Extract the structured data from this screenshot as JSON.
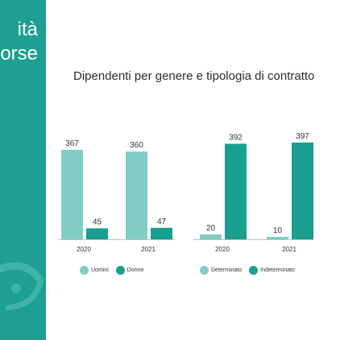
{
  "sidebar": {
    "title_line1": "ità",
    "title_line2": "orse"
  },
  "header": {
    "title": "Dipendenti per genere e tipologia di contratto"
  },
  "colors": {
    "light_teal": "#7fcdc4",
    "dark_teal": "#1a9e8f",
    "panel": "#1f9e94"
  },
  "legends": [
    {
      "items": [
        "Uomini",
        "Donne"
      ]
    },
    {
      "items": [
        "Determinato",
        "Indeterminato"
      ]
    }
  ],
  "chart_data": [
    {
      "type": "bar",
      "categories": [
        "2020",
        "2021"
      ],
      "series": [
        {
          "name": "Uomini",
          "values": [
            367,
            360
          ]
        },
        {
          "name": "Donne",
          "values": [
            45,
            47
          ]
        }
      ],
      "ylim": [
        0,
        400
      ]
    },
    {
      "type": "bar",
      "categories": [
        "2020",
        "2021"
      ],
      "series": [
        {
          "name": "Determinato",
          "values": [
            20,
            10
          ]
        },
        {
          "name": "Indeterminato",
          "values": [
            392,
            397
          ]
        }
      ],
      "ylim": [
        0,
        400
      ]
    }
  ]
}
